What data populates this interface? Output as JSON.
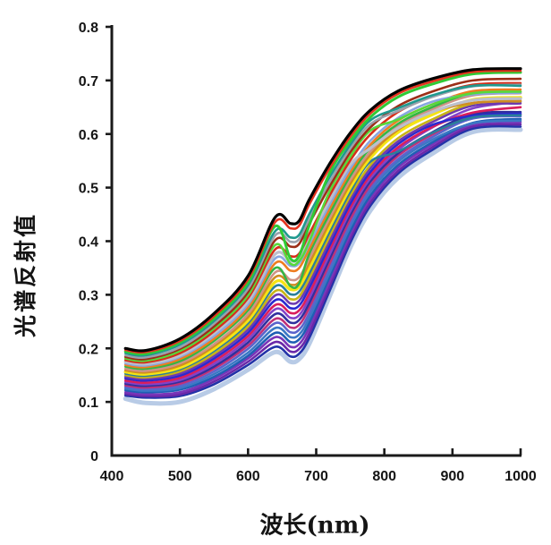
{
  "chart_data": {
    "type": "line",
    "title": "",
    "xlabel": "波长(nm)",
    "ylabel": "光谱反射值",
    "xlim": [
      400,
      1000
    ],
    "ylim": [
      0,
      0.8
    ],
    "grid": false,
    "legend": "none",
    "axis_color": "#1a1a1a",
    "x_tick_labels": [
      "400",
      "500",
      "600",
      "700",
      "800",
      "900",
      "1000"
    ],
    "x_tick_values": [
      400,
      500,
      600,
      700,
      800,
      900,
      1000
    ],
    "y_tick_labels": [
      "0",
      "0.1",
      "0.2",
      "0.3",
      "0.4",
      "0.5",
      "0.6",
      "0.7",
      "0.8"
    ],
    "y_tick_values": [
      0,
      0.1,
      0.2,
      0.3,
      0.4,
      0.5,
      0.6,
      0.7,
      0.8
    ],
    "x": [
      420,
      450,
      500,
      550,
      600,
      640,
      662,
      675,
      690,
      720,
      750,
      780,
      820,
      870,
      930,
      1000
    ],
    "series": [
      {
        "name": "spectrum-01",
        "color": "#000000",
        "width": 3.2,
        "values": [
          0.2,
          0.196,
          0.218,
          0.265,
          0.335,
          0.445,
          0.433,
          0.438,
          0.478,
          0.545,
          0.602,
          0.645,
          0.68,
          0.703,
          0.72,
          0.722
        ]
      },
      {
        "name": "spectrum-02",
        "color": "#e5331e",
        "width": 2.6,
        "values": [
          0.197,
          0.193,
          0.214,
          0.26,
          0.329,
          0.436,
          0.424,
          0.429,
          0.469,
          0.537,
          0.595,
          0.639,
          0.675,
          0.698,
          0.716,
          0.718
        ]
      },
      {
        "name": "spectrum-03",
        "color": "#2fca35",
        "width": 3.0,
        "values": [
          0.194,
          0.19,
          0.211,
          0.256,
          0.323,
          0.428,
          0.368,
          0.373,
          0.43,
          0.528,
          0.587,
          0.632,
          0.669,
          0.693,
          0.712,
          0.715
        ]
      },
      {
        "name": "spectrum-04",
        "color": "#1f998e",
        "width": 2.6,
        "values": [
          0.191,
          0.187,
          0.207,
          0.251,
          0.318,
          0.419,
          0.407,
          0.412,
          0.451,
          0.52,
          0.58,
          0.626,
          0.648,
          0.672,
          0.69,
          0.69
        ]
      },
      {
        "name": "spectrum-05",
        "color": "#9aa0ac",
        "width": 2.6,
        "values": [
          0.187,
          0.183,
          0.202,
          0.246,
          0.311,
          0.411,
          0.399,
          0.404,
          0.442,
          0.511,
          0.573,
          0.619,
          0.643,
          0.669,
          0.689,
          0.692
        ]
      },
      {
        "name": "spectrum-06",
        "color": "#9c2e18",
        "width": 2.6,
        "values": [
          0.184,
          0.18,
          0.199,
          0.241,
          0.305,
          0.402,
          0.39,
          0.395,
          0.433,
          0.503,
          0.566,
          0.613,
          0.652,
          0.679,
          0.7,
          0.703
        ]
      },
      {
        "name": "spectrum-07",
        "color": "#57d93a",
        "width": 2.6,
        "values": [
          0.181,
          0.177,
          0.195,
          0.237,
          0.299,
          0.393,
          0.358,
          0.363,
          0.4,
          0.494,
          0.558,
          0.607,
          0.627,
          0.655,
          0.676,
          0.679
        ]
      },
      {
        "name": "spectrum-08",
        "color": "#d62e1a",
        "width": 2.6,
        "values": [
          0.178,
          0.174,
          0.191,
          0.232,
          0.294,
          0.385,
          0.372,
          0.377,
          0.414,
          0.486,
          0.551,
          0.6,
          0.641,
          0.67,
          0.692,
          0.695
        ]
      },
      {
        "name": "spectrum-09",
        "color": "#bcc0cc",
        "width": 3.2,
        "values": [
          0.175,
          0.171,
          0.187,
          0.228,
          0.288,
          0.376,
          0.363,
          0.368,
          0.405,
          0.477,
          0.543,
          0.574,
          0.611,
          0.641,
          0.663,
          0.666
        ]
      },
      {
        "name": "spectrum-10",
        "color": "#88a6e0",
        "width": 2.6,
        "values": [
          0.172,
          0.168,
          0.184,
          0.223,
          0.282,
          0.368,
          0.354,
          0.359,
          0.395,
          0.469,
          0.536,
          0.588,
          0.63,
          0.66,
          0.674,
          0.677
        ]
      },
      {
        "name": "spectrum-11",
        "color": "#ee7d20",
        "width": 2.6,
        "values": [
          0.169,
          0.165,
          0.18,
          0.218,
          0.276,
          0.359,
          0.345,
          0.35,
          0.386,
          0.461,
          0.529,
          0.581,
          0.625,
          0.655,
          0.68,
          0.683
        ]
      },
      {
        "name": "spectrum-12",
        "color": "#35b544",
        "width": 2.6,
        "values": [
          0.166,
          0.162,
          0.176,
          0.214,
          0.271,
          0.35,
          0.316,
          0.321,
          0.377,
          0.452,
          0.522,
          0.575,
          0.619,
          0.65,
          0.676,
          0.679
        ]
      },
      {
        "name": "spectrum-13",
        "color": "#cf9386",
        "width": 2.6,
        "values": [
          0.162,
          0.158,
          0.172,
          0.208,
          0.264,
          0.342,
          0.328,
          0.333,
          0.368,
          0.444,
          0.514,
          0.568,
          0.614,
          0.646,
          0.672,
          0.676
        ]
      },
      {
        "name": "spectrum-14",
        "color": "#d08c22",
        "width": 2.6,
        "values": [
          0.159,
          0.155,
          0.168,
          0.204,
          0.258,
          0.333,
          0.319,
          0.324,
          0.359,
          0.435,
          0.507,
          0.562,
          0.608,
          0.641,
          0.658,
          0.662
        ]
      },
      {
        "name": "spectrum-15",
        "color": "#f5e414",
        "width": 3.4,
        "values": [
          0.156,
          0.152,
          0.164,
          0.199,
          0.252,
          0.324,
          0.31,
          0.315,
          0.35,
          0.427,
          0.5,
          0.556,
          0.603,
          0.636,
          0.664,
          0.668
        ]
      },
      {
        "name": "spectrum-16",
        "color": "#2a7f9a",
        "width": 2.6,
        "values": [
          0.153,
          0.149,
          0.161,
          0.195,
          0.247,
          0.316,
          0.301,
          0.306,
          0.34,
          0.418,
          0.492,
          0.549,
          0.567,
          0.602,
          0.631,
          0.635
        ]
      },
      {
        "name": "spectrum-17",
        "color": "#c8b416",
        "width": 2.6,
        "values": [
          0.15,
          0.146,
          0.157,
          0.19,
          0.241,
          0.307,
          0.292,
          0.297,
          0.331,
          0.41,
          0.485,
          0.543,
          0.592,
          0.627,
          0.657,
          0.661
        ]
      },
      {
        "name": "spectrum-18",
        "color": "#6d3ab0",
        "width": 2.6,
        "values": [
          0.147,
          0.143,
          0.153,
          0.186,
          0.235,
          0.299,
          0.284,
          0.289,
          0.322,
          0.401,
          0.478,
          0.537,
          0.586,
          0.622,
          0.653,
          0.657
        ]
      },
      {
        "name": "spectrum-19",
        "color": "#2a2ad0",
        "width": 2.6,
        "values": [
          0.144,
          0.14,
          0.149,
          0.181,
          0.229,
          0.29,
          0.275,
          0.28,
          0.313,
          0.393,
          0.47,
          0.53,
          0.581,
          0.617,
          0.634,
          0.638
        ]
      },
      {
        "name": "spectrum-20",
        "color": "#da1e5c",
        "width": 2.6,
        "values": [
          0.14,
          0.136,
          0.145,
          0.176,
          0.223,
          0.281,
          0.266,
          0.271,
          0.303,
          0.385,
          0.463,
          0.524,
          0.575,
          0.613,
          0.64,
          0.65
        ]
      },
      {
        "name": "spectrum-21",
        "color": "#8242c8",
        "width": 2.6,
        "values": [
          0.137,
          0.133,
          0.141,
          0.171,
          0.217,
          0.273,
          0.257,
          0.262,
          0.294,
          0.376,
          0.456,
          0.518,
          0.57,
          0.612,
          0.648,
          0.66
        ]
      },
      {
        "name": "spectrum-22",
        "color": "#30309e",
        "width": 2.6,
        "values": [
          0.134,
          0.13,
          0.138,
          0.166,
          0.211,
          0.264,
          0.248,
          0.253,
          0.285,
          0.368,
          0.449,
          0.512,
          0.564,
          0.603,
          0.637,
          0.641
        ]
      },
      {
        "name": "spectrum-23",
        "color": "#c03078",
        "width": 2.6,
        "values": [
          0.131,
          0.127,
          0.134,
          0.162,
          0.205,
          0.255,
          0.239,
          0.244,
          0.276,
          0.359,
          0.441,
          0.505,
          0.559,
          0.599,
          0.633,
          0.637
        ]
      },
      {
        "name": "spectrum-24",
        "color": "#5a64cc",
        "width": 2.6,
        "values": [
          0.128,
          0.124,
          0.13,
          0.157,
          0.199,
          0.247,
          0.23,
          0.235,
          0.266,
          0.351,
          0.434,
          0.499,
          0.553,
          0.594,
          0.629,
          0.633
        ]
      },
      {
        "name": "spectrum-25",
        "color": "#3b78c4",
        "width": 2.6,
        "values": [
          0.125,
          0.121,
          0.126,
          0.152,
          0.192,
          0.238,
          0.221,
          0.226,
          0.257,
          0.342,
          0.427,
          0.493,
          0.548,
          0.589,
          0.62,
          0.625
        ]
      },
      {
        "name": "spectrum-26",
        "color": "#1f5fb4",
        "width": 2.6,
        "values": [
          0.122,
          0.118,
          0.123,
          0.147,
          0.186,
          0.229,
          0.212,
          0.217,
          0.248,
          0.334,
          0.419,
          0.486,
          0.542,
          0.584,
          0.621,
          0.628
        ]
      },
      {
        "name": "spectrum-27",
        "color": "#7a35b8",
        "width": 2.6,
        "values": [
          0.118,
          0.114,
          0.118,
          0.143,
          0.181,
          0.221,
          0.203,
          0.208,
          0.239,
          0.325,
          0.412,
          0.48,
          0.537,
          0.58,
          0.618,
          0.622
        ]
      },
      {
        "name": "spectrum-28",
        "color": "#6a28a8",
        "width": 2.6,
        "values": [
          0.115,
          0.111,
          0.114,
          0.138,
          0.175,
          0.212,
          0.194,
          0.199,
          0.229,
          0.317,
          0.405,
          0.473,
          0.531,
          0.575,
          0.614,
          0.618
        ]
      },
      {
        "name": "spectrum-29",
        "color": "#2233a8",
        "width": 2.6,
        "values": [
          0.112,
          0.108,
          0.111,
          0.133,
          0.169,
          0.203,
          0.185,
          0.19,
          0.22,
          0.308,
          0.397,
          0.467,
          0.526,
          0.57,
          0.61,
          0.614
        ]
      },
      {
        "name": "spectrum-30",
        "color": "#b8cbe6",
        "width": 5.0,
        "values": [
          0.106,
          0.098,
          0.1,
          0.124,
          0.16,
          0.193,
          0.175,
          0.18,
          0.209,
          0.298,
          0.388,
          0.458,
          0.518,
          0.563,
          0.604,
          0.608
        ]
      }
    ]
  }
}
